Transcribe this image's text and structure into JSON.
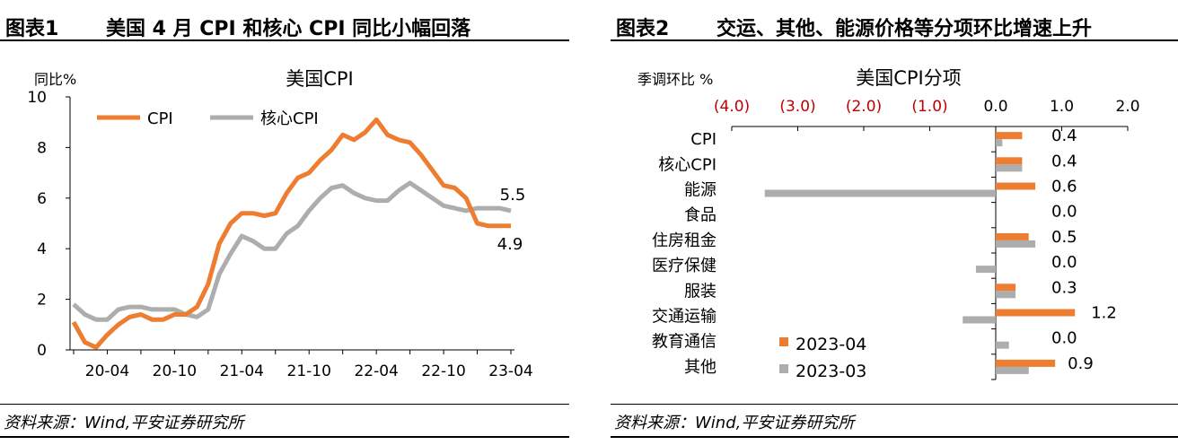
{
  "figure1": {
    "number": "图表1",
    "title": "美国 4 月 CPI 和核心 CPI 同比小幅回落",
    "source": "资料来源：Wind,平安证券研究所"
  },
  "figure2": {
    "number": "图表2",
    "title": "交运、其他、能源价格等分项环比增速上升",
    "source": "资料来源：Wind,平安证券研究所"
  },
  "chart_data": [
    {
      "type": "line",
      "title": "美国CPI",
      "ylabel": "同比%",
      "ylim": [
        0,
        10
      ],
      "yticks": [
        0,
        2,
        4,
        6,
        8,
        10
      ],
      "xtick_labels": [
        "20-04",
        "20-10",
        "21-04",
        "21-10",
        "22-04",
        "22-10",
        "23-04"
      ],
      "x": [
        "20-01",
        "20-02",
        "20-03",
        "20-04",
        "20-05",
        "20-06",
        "20-07",
        "20-08",
        "20-09",
        "20-10",
        "20-11",
        "20-12",
        "21-01",
        "21-02",
        "21-03",
        "21-04",
        "21-05",
        "21-06",
        "21-07",
        "21-08",
        "21-09",
        "21-10",
        "21-11",
        "21-12",
        "22-01",
        "22-02",
        "22-03",
        "22-04",
        "22-05",
        "22-06",
        "22-07",
        "22-08",
        "22-09",
        "22-10",
        "22-11",
        "22-12",
        "23-01",
        "23-02",
        "23-03",
        "23-04"
      ],
      "legend_position": "top-left",
      "grid": false,
      "colors": {
        "CPI": "#ED7D31",
        "核心CPI": "#ADADAD"
      },
      "series": [
        {
          "name": "CPI",
          "values": [
            1.1,
            0.3,
            0.1,
            0.6,
            1.0,
            1.3,
            1.4,
            1.2,
            1.2,
            1.4,
            1.4,
            1.7,
            2.6,
            4.2,
            5.0,
            5.4,
            5.4,
            5.3,
            5.4,
            6.2,
            6.8,
            7.0,
            7.5,
            7.9,
            8.5,
            8.3,
            8.6,
            9.1,
            8.5,
            8.3,
            8.2,
            7.7,
            7.1,
            6.5,
            6.4,
            6.0,
            5.0,
            4.9,
            4.9,
            4.9
          ]
        },
        {
          "name": "核心CPI",
          "values": [
            1.8,
            1.4,
            1.2,
            1.2,
            1.6,
            1.7,
            1.7,
            1.6,
            1.6,
            1.6,
            1.4,
            1.3,
            1.6,
            3.0,
            3.8,
            4.5,
            4.3,
            4.0,
            4.0,
            4.6,
            4.9,
            5.5,
            6.0,
            6.4,
            6.5,
            6.2,
            6.0,
            5.9,
            5.9,
            6.3,
            6.6,
            6.3,
            6.0,
            5.7,
            5.6,
            5.5,
            5.6,
            5.6,
            5.6,
            5.5
          ]
        }
      ],
      "end_labels": {
        "core": "5.5",
        "cpi": "4.9"
      }
    },
    {
      "type": "bar",
      "orientation": "horizontal",
      "title": "美国CPI分项",
      "xlabel": "季调环比 %",
      "xlim": [
        -4.0,
        2.0
      ],
      "xticks": [
        -4.0,
        -3.0,
        -2.0,
        -1.0,
        0.0,
        1.0,
        2.0
      ],
      "xtick_labels": [
        "(4.0)",
        "(3.0)",
        "(2.0)",
        "(1.0)",
        "0.0",
        "1.0",
        "2.0"
      ],
      "negative_tick_color": "#C00000",
      "categories": [
        "CPI",
        "核心CPI",
        "能源",
        "食品",
        "住房租金",
        "医疗保健",
        "服装",
        "交通运输",
        "教育通信",
        "其他"
      ],
      "legend_position": "bottom-left",
      "colors": {
        "2023-04": "#ED7D31",
        "2023-03": "#ADADAD"
      },
      "series": [
        {
          "name": "2023-04",
          "values": [
            0.4,
            0.4,
            0.6,
            0.0,
            0.5,
            0.0,
            0.3,
            1.2,
            0.0,
            0.9
          ]
        },
        {
          "name": "2023-03",
          "values": [
            0.1,
            0.4,
            -3.5,
            0.0,
            0.6,
            -0.3,
            0.3,
            -0.5,
            0.2,
            0.5
          ]
        }
      ],
      "data_labels": [
        "0.4",
        "0.4",
        "0.6",
        "0.0",
        "0.5",
        "0.0",
        "0.3",
        "1.2",
        "0.0",
        "0.9"
      ]
    }
  ]
}
